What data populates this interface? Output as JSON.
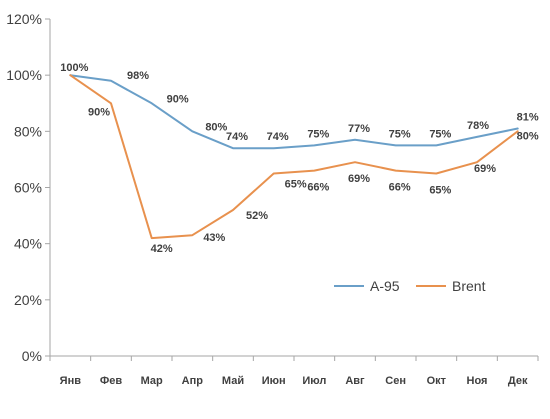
{
  "chart_data": {
    "type": "line",
    "categories": [
      "Янв",
      "Фев",
      "Мар",
      "Апр",
      "Май",
      "Июн",
      "Июл",
      "Авг",
      "Сен",
      "Окт",
      "Ноя",
      "Дек"
    ],
    "series": [
      {
        "name": "А-95",
        "color": "#6a9fc8",
        "values": [
          100,
          98,
          90,
          80,
          74,
          74,
          75,
          77,
          75,
          75,
          78,
          81
        ],
        "labels": [
          "100%",
          "98%",
          "90%",
          "80%",
          "74%",
          "74%",
          "75%",
          "77%",
          "75%",
          "75%",
          "78%",
          "81%"
        ]
      },
      {
        "name": "Brent",
        "color": "#e8914e",
        "values": [
          100,
          90,
          42,
          43,
          52,
          65,
          66,
          69,
          66,
          65,
          69,
          80
        ],
        "labels": [
          "",
          "90%",
          "42%",
          "43%",
          "52%",
          "65%",
          "66%",
          "69%",
          "66%",
          "65%",
          "69%",
          "80%"
        ]
      }
    ],
    "ylim": [
      0,
      120
    ],
    "yticks": [
      0,
      20,
      40,
      60,
      80,
      100,
      120
    ],
    "ytick_labels": [
      "0%",
      "20%",
      "40%",
      "60%",
      "80%",
      "100%",
      "120%"
    ],
    "grid": false,
    "legend_position": "bottom-right",
    "title": "",
    "xlabel": "",
    "ylabel": ""
  }
}
